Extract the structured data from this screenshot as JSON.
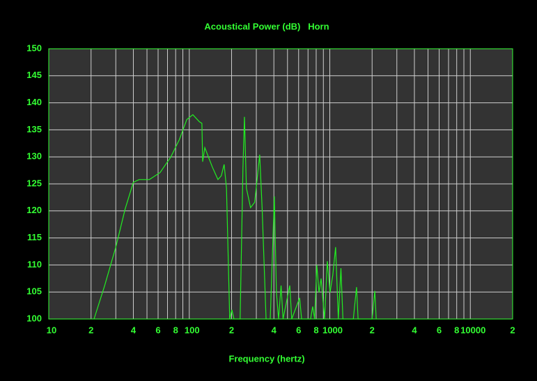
{
  "chart_data": {
    "type": "line",
    "title": "Acoustical Power (dB)   Horn",
    "xlabel": "Frequency (hertz)",
    "log_x": true,
    "grid": true,
    "color": "#22ee22",
    "xlim": [
      10,
      20000
    ],
    "xticks": [
      10,
      {
        "value": 20,
        "label": "2"
      },
      {
        "value": 40,
        "label": "4"
      },
      {
        "value": 60,
        "label": "6"
      },
      {
        "value": 80,
        "label": "8"
      },
      100,
      {
        "value": 200,
        "label": "2"
      },
      {
        "value": 400,
        "label": "4"
      },
      {
        "value": 600,
        "label": "6"
      },
      {
        "value": 800,
        "label": "8"
      },
      1000,
      {
        "value": 2000,
        "label": "2"
      },
      {
        "value": 4000,
        "label": "4"
      },
      {
        "value": 6000,
        "label": "6"
      },
      {
        "value": 8000,
        "label": "8"
      },
      10000,
      {
        "value": 20000,
        "label": "2"
      }
    ],
    "minor_xticks": [
      30,
      50,
      70,
      90,
      300,
      500,
      700,
      900,
      3000,
      5000,
      7000,
      9000
    ],
    "ylim": [
      100,
      150
    ],
    "yticks": [
      100,
      105,
      110,
      115,
      120,
      125,
      130,
      135,
      140,
      145,
      150
    ],
    "x": [
      21,
      25,
      30,
      35,
      40,
      44,
      52,
      62,
      74,
      85,
      96,
      106,
      118,
      123,
      124.5,
      129,
      146,
      160,
      169,
      177,
      184,
      194,
      201,
      208,
      230,
      241,
      247,
      255,
      273,
      292,
      317,
      330,
      352,
      377,
      403,
      417,
      432,
      450,
      465,
      519,
      536,
      610,
      630,
      730,
      755,
      780,
      808,
      838,
      867,
      918,
      960,
      1004,
      1050,
      1100,
      1150,
      1200,
      1240,
      1470,
      1550,
      1590,
      2000,
      2090,
      2140
    ],
    "values": [
      100,
      106.2,
      113.3,
      120.4,
      125.3,
      125.8,
      125.8,
      127.1,
      130,
      133.2,
      136.9,
      137.8,
      136.5,
      136.2,
      129.1,
      131.7,
      128.1,
      125.8,
      126.5,
      128.6,
      124.2,
      100,
      101.7,
      100,
      100,
      128,
      137.4,
      124.2,
      120.6,
      121.6,
      130.4,
      120.4,
      100,
      100,
      122.7,
      104.9,
      100,
      106.2,
      100,
      106.2,
      100,
      103.9,
      100,
      100,
      102.3,
      100,
      110,
      104.9,
      107.5,
      100,
      110.7,
      104.9,
      108.1,
      113.3,
      100,
      109.4,
      100,
      100,
      105.9,
      100,
      100,
      105.2,
      100
    ]
  }
}
